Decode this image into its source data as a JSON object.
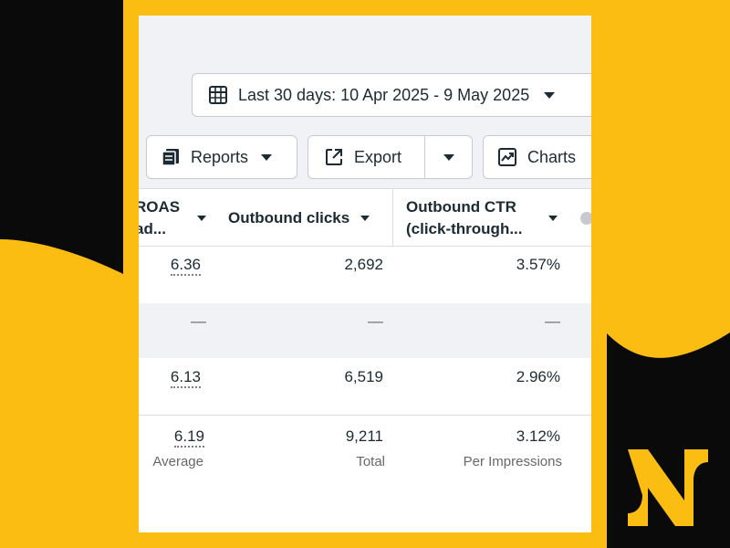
{
  "toolbar": {
    "date_range_label": "Last 30 days: 10 Apr 2025 - 9 May 2025",
    "reports_label": "Reports",
    "export_label": "Export",
    "charts_label": "Charts"
  },
  "table": {
    "columns": [
      {
        "line1": "ROAS",
        "line2": "ad..."
      },
      {
        "label": "Outbound clicks"
      },
      {
        "line1": "Outbound CTR",
        "line2": "(click-through..."
      }
    ],
    "rows": [
      {
        "roas": "6.36",
        "clicks": "2,692",
        "ctr": "3.57%"
      },
      {
        "roas": "—",
        "clicks": "—",
        "ctr": "—"
      },
      {
        "roas": "6.13",
        "clicks": "6,519",
        "ctr": "2.96%"
      }
    ],
    "summary": {
      "roas": "6.19",
      "roas_note": "Average",
      "clicks": "9,211",
      "clicks_note": "Total",
      "ctr": "3.12%",
      "ctr_note": "Per Impressions"
    }
  },
  "colors": {
    "background": "#fcbd12",
    "black": "#0a0a0a"
  },
  "icons": [
    "calendar-grid-icon",
    "reports-icon",
    "export-icon",
    "charts-icon",
    "caret-down-icon",
    "logo"
  ]
}
